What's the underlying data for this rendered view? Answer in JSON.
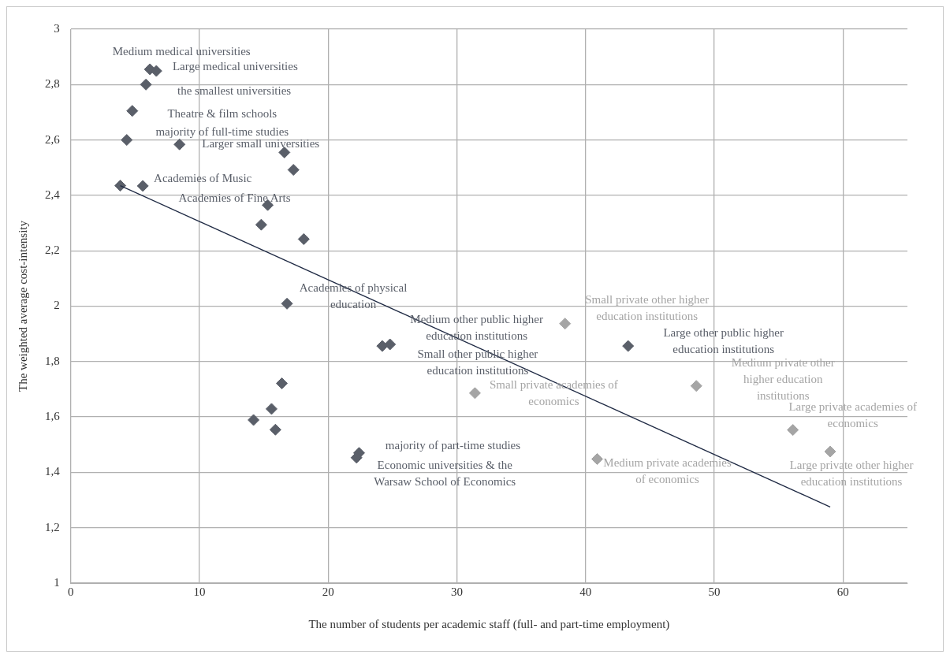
{
  "chart_data": {
    "type": "scatter",
    "xlabel": "The number of students per academic staff (full- and part-time employment)",
    "ylabel": "The weighted average cost-intensity",
    "xlim": [
      0,
      65
    ],
    "xticks": [
      0,
      10,
      20,
      30,
      40,
      50,
      60
    ],
    "ylim": [
      1,
      3
    ],
    "yticks": [
      {
        "value": 1,
        "label": "1"
      },
      {
        "value": 1.2,
        "label": "1,2"
      },
      {
        "value": 1.4,
        "label": "1,4"
      },
      {
        "value": 1.6,
        "label": "1,6"
      },
      {
        "value": 1.8,
        "label": "1,8"
      },
      {
        "value": 2,
        "label": "2"
      },
      {
        "value": 2.2,
        "label": "2,2"
      },
      {
        "value": 2.4,
        "label": "2,4"
      },
      {
        "value": 2.6,
        "label": "2,6"
      },
      {
        "value": 2.8,
        "label": "2,8"
      },
      {
        "value": 3,
        "label": "3"
      }
    ],
    "grid": true,
    "marker": "diamond",
    "legend": false,
    "series": [
      {
        "color": "#5a5f69",
        "x": [
          6.15,
          6.65,
          5.84,
          4.78,
          4.35,
          8.45,
          16.6,
          17.3,
          3.85,
          5.6,
          15.3,
          14.8,
          18.1,
          16.8,
          24.2,
          24.8,
          43.3,
          16.4,
          15.6,
          14.2,
          15.9,
          22.4,
          22.2
        ],
        "values": [
          2.855,
          2.849,
          2.8,
          2.705,
          2.6,
          2.584,
          2.555,
          2.492,
          2.435,
          2.434,
          2.365,
          2.294,
          2.242,
          2.009,
          1.856,
          1.862,
          1.856,
          1.721,
          1.629,
          1.589,
          1.554,
          1.47,
          1.453
        ]
      },
      {
        "color": "#a5a5a5",
        "x": [
          38.4,
          31.4,
          48.6,
          40.9,
          56.1,
          59
        ],
        "values": [
          1.937,
          1.686,
          1.712,
          1.448,
          1.553,
          1.475
        ]
      },
      {
        "type": "line",
        "marker": "none",
        "color": "#1f2a44",
        "x": [
          3.85,
          59
        ],
        "values": [
          2.435,
          1.275
        ]
      }
    ],
    "annotations": [
      {
        "text": "Medium medical universities",
        "x": 6.15,
        "y": 2.855
      },
      {
        "text": "Large medical universities",
        "x": 6.65,
        "y": 2.849
      },
      {
        "text": "the smallest universities",
        "x": 5.84,
        "y": 2.8
      },
      {
        "text": "Theatre & film schools",
        "x": 4.78,
        "y": 2.705
      },
      {
        "text": "majority of full-time studies",
        "x": 4.35,
        "y": 2.6
      },
      {
        "text": "Larger small universities",
        "x": 8.45,
        "y": 2.584
      },
      {
        "text": "Academies of Music",
        "x": 5.6,
        "y": 2.434
      },
      {
        "text": "Academies of Fine Arts",
        "x": 15.3,
        "y": 2.365
      },
      {
        "text": "Academies of physical education",
        "x": 16.8,
        "y": 2.009
      },
      {
        "text": "Medium other public higher education institutions",
        "x": 24.8,
        "y": 1.862
      },
      {
        "text": "Small other public higher education institutions",
        "x": 24.2,
        "y": 1.856
      },
      {
        "text": "Large other public higher education institutions",
        "x": 43.3,
        "y": 1.856
      },
      {
        "text": "Small private other higher education institutions",
        "x": 38.4,
        "y": 1.937
      },
      {
        "text": "Medium private other higher education institutions",
        "x": 48.6,
        "y": 1.712
      },
      {
        "text": "Small private academies of economics",
        "x": 31.4,
        "y": 1.686
      },
      {
        "text": "Medium private academies of economics",
        "x": 40.9,
        "y": 1.448
      },
      {
        "text": "Large private academies of economics",
        "x": 56.1,
        "y": 1.553
      },
      {
        "text": "Large private other higher education institutions",
        "x": 59,
        "y": 1.475
      },
      {
        "text": "majority of part-time studies",
        "x": 22.4,
        "y": 1.47
      },
      {
        "text": "Economic universities & the Warsaw School of Economics",
        "x": 22.2,
        "y": 1.453
      }
    ]
  }
}
